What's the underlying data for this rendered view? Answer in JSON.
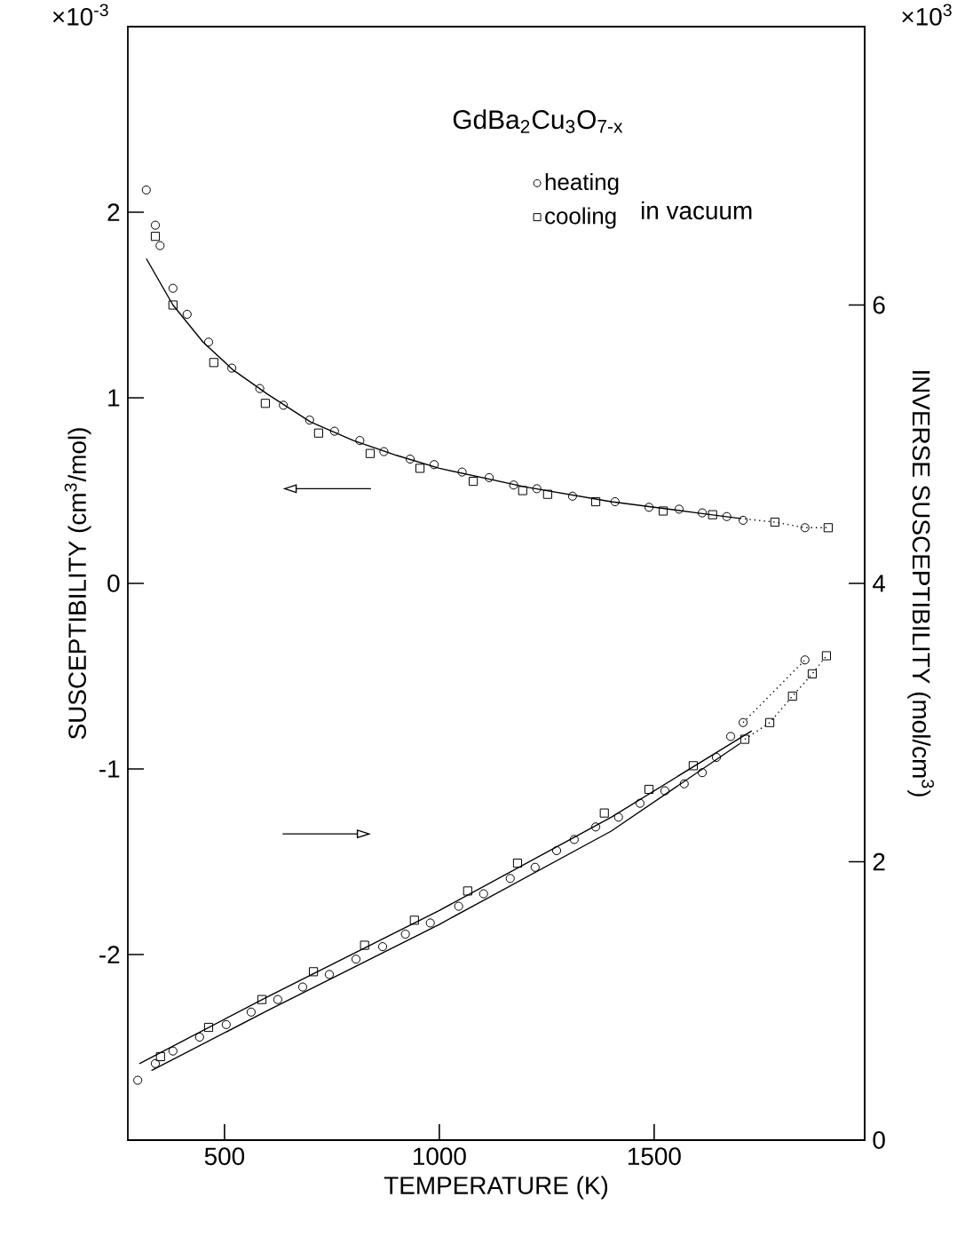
{
  "chart_data": {
    "type": "scatter",
    "title": "GdBa$_{2}$Cu$_{3}$O$_{7-x}$",
    "xlabel": "TEMPERATURE (K)",
    "ylabel": "SUSCEPTIBILITY  (cm$^{3}$/mol)",
    "y2label": "INVERSE  SUSCEPTIBILITY  (mol/cm$^{3}$)",
    "annotations": [
      "×10$^{-3}$",
      "×10$^{3}$",
      "in vacuum"
    ],
    "xlim": [
      275,
      1990
    ],
    "xticks": [
      500,
      1000,
      1500
    ],
    "ylim": [
      -3,
      3
    ],
    "yticks": [
      -2,
      -1,
      0,
      1,
      2
    ],
    "y2lim": [
      0,
      8
    ],
    "y2ticks": [
      0,
      2,
      4,
      6
    ],
    "legend": "top right",
    "series": [
      {
        "name": "heating",
        "marker": "circle",
        "color": "#000000",
        "x": [
          318,
          339,
          350,
          380,
          413,
          463,
          517,
          582,
          637,
          698,
          756,
          815,
          871,
          932,
          988,
          1053,
          1116,
          1173,
          1227,
          1310,
          1409,
          1488,
          1558,
          1612,
          1669,
          1707,
          1851
        ],
        "values": [
          2.12,
          1.93,
          1.82,
          1.59,
          1.45,
          1.3,
          1.16,
          1.05,
          0.96,
          0.88,
          0.82,
          0.77,
          0.71,
          0.67,
          0.64,
          0.6,
          0.57,
          0.53,
          0.51,
          0.47,
          0.44,
          0.41,
          0.4,
          0.38,
          0.36,
          0.34,
          0.3
        ]
      },
      {
        "name": "cooling",
        "marker": "square",
        "color": "#000000",
        "x": [
          339,
          380,
          475,
          595,
          719,
          839,
          955,
          1079,
          1194,
          1252,
          1364,
          1521,
          1636,
          1781,
          1905
        ],
        "values": [
          1.87,
          1.5,
          1.19,
          0.97,
          0.81,
          0.7,
          0.62,
          0.55,
          0.5,
          0.48,
          0.44,
          0.39,
          0.37,
          0.33,
          0.3
        ]
      },
      {
        "type": "line",
        "marker": "none",
        "line_style": "solid",
        "color": "#000000",
        "x": [
          318,
          380,
          450,
          520,
          600,
          700,
          800,
          900,
          1000,
          1200,
          1400,
          1600,
          1700
        ],
        "values": [
          1.75,
          1.5,
          1.3,
          1.15,
          1.02,
          0.87,
          0.77,
          0.69,
          0.62,
          0.52,
          0.44,
          0.38,
          0.35
        ]
      },
      {
        "type": "line",
        "marker": "none",
        "line_style": "dotted",
        "color": "#000000",
        "x": [
          1700,
          1781,
          1851,
          1905
        ],
        "values": [
          0.35,
          0.33,
          0.3,
          0.3
        ]
      },
      {
        "axis": "y2",
        "marker": "circle",
        "color": "#000000",
        "x": [
          298,
          339,
          380,
          442,
          504,
          562,
          624,
          682,
          744,
          806,
          868,
          921,
          979,
          1045,
          1103,
          1165,
          1223,
          1273,
          1314,
          1364,
          1417,
          1467,
          1525,
          1570,
          1612,
          1645,
          1678,
          1707,
          1851
        ],
        "values": [
          0.43,
          0.55,
          0.64,
          0.74,
          0.83,
          0.92,
          1.01,
          1.1,
          1.19,
          1.3,
          1.39,
          1.48,
          1.56,
          1.68,
          1.77,
          1.88,
          1.96,
          2.08,
          2.16,
          2.25,
          2.32,
          2.42,
          2.51,
          2.56,
          2.64,
          2.75,
          2.9,
          3.0,
          3.45
        ]
      },
      {
        "axis": "y2",
        "marker": "square",
        "color": "#000000",
        "x": [
          351,
          463,
          587,
          707,
          826,
          942,
          1066,
          1182,
          1384,
          1488,
          1591,
          1711,
          1769,
          1822,
          1868,
          1901
        ],
        "values": [
          0.6,
          0.81,
          1.01,
          1.21,
          1.4,
          1.58,
          1.79,
          1.99,
          2.35,
          2.52,
          2.69,
          2.88,
          3.0,
          3.19,
          3.35,
          3.48
        ]
      },
      {
        "type": "line",
        "axis": "y2",
        "marker": "none",
        "line_style": "solid",
        "color": "#000000",
        "x": [
          302,
          600,
          1000,
          1400,
          1727
        ],
        "values": [
          0.55,
          1.03,
          1.65,
          2.32,
          2.94
        ]
      },
      {
        "type": "line",
        "axis": "y2",
        "marker": "none",
        "line_style": "solid",
        "color": "#000000",
        "x": [
          330,
          600,
          1000,
          1400,
          1700
        ],
        "values": [
          0.5,
          0.93,
          1.55,
          2.22,
          2.85
        ]
      },
      {
        "type": "line",
        "axis": "y2",
        "marker": "none",
        "line_style": "dotted",
        "color": "#000000",
        "x": [
          1707,
          1851
        ],
        "values": [
          3.0,
          3.45
        ]
      },
      {
        "type": "line",
        "axis": "y2",
        "marker": "none",
        "line_style": "dotted",
        "color": "#000000",
        "x": [
          1711,
          1769,
          1822,
          1868,
          1901
        ],
        "values": [
          2.88,
          3.0,
          3.19,
          3.35,
          3.48
        ]
      }
    ]
  }
}
